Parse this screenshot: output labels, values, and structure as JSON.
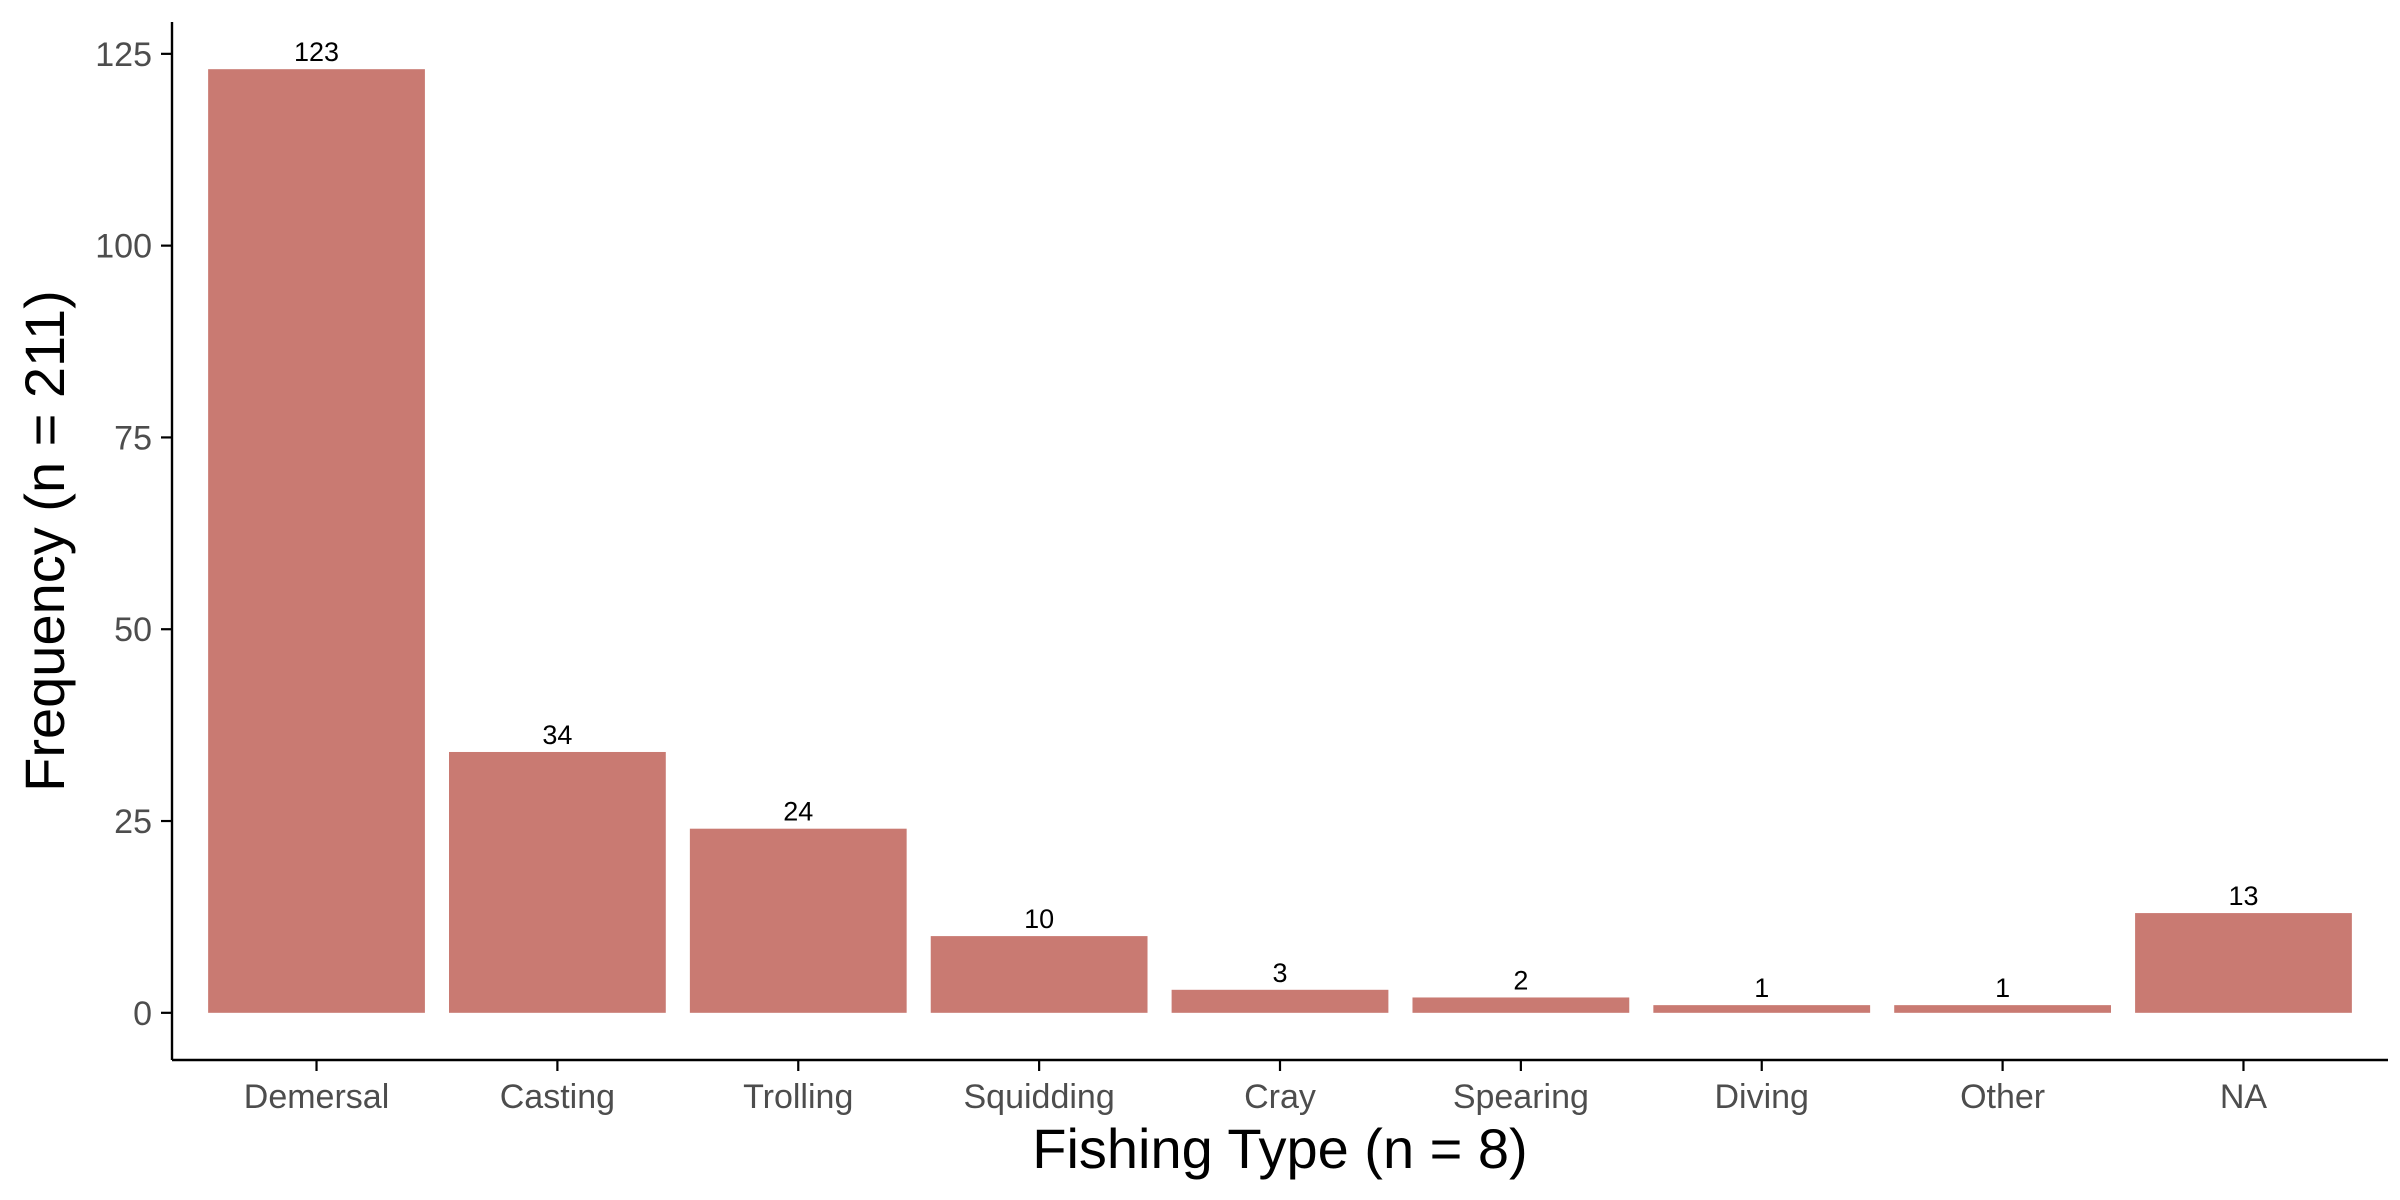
{
  "chart_data": {
    "type": "bar",
    "xlabel": "Fishing Type (n = 8)",
    "ylabel": "Frequency (n = 211)",
    "categories": [
      "Demersal",
      "Casting",
      "Trolling",
      "Squidding",
      "Cray",
      "Spearing",
      "Diving",
      "Other",
      "NA"
    ],
    "values": [
      123,
      34,
      24,
      10,
      3,
      2,
      1,
      1,
      13
    ],
    "data_labels": [
      "123",
      "34",
      "24",
      "10",
      "3",
      "2",
      "1",
      "1",
      "13"
    ],
    "yticks": [
      0,
      25,
      50,
      75,
      100,
      125
    ],
    "ytick_labels": [
      "0",
      "25",
      "50",
      "75",
      "100",
      "125"
    ],
    "ylim": [
      -6.15,
      129.15
    ],
    "grid": false,
    "bar_color": "#C97A72",
    "axis_color": "#000000",
    "tick_label_color": "#4D4D4D"
  }
}
